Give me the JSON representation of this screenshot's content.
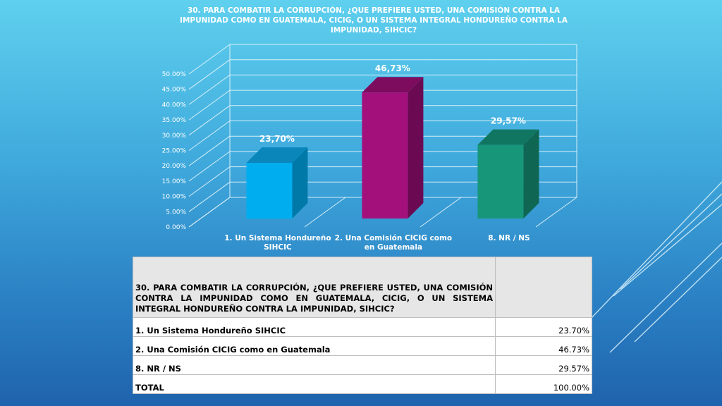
{
  "chart_data": {
    "type": "bar",
    "title": "30. PARA COMBATIR LA CORRUPCIÓN, ¿QUE PREFIERE USTED, UNA COMISIÓN CONTRA LA IMPUNIDAD COMO EN GUATEMALA, CICIG, O UN SISTEMA INTEGRAL HONDUREÑO CONTRA LA IMPUNIDAD, SIHCIC?",
    "categories": [
      "1. Un Sistema Hondureño SIHCIC",
      "2. Una Comisión CICIG como en Guatemala",
      "8. NR / NS"
    ],
    "category_lines": [
      [
        "1. Un Sistema Hondureño",
        "SIHCIC"
      ],
      [
        "2. Una Comisión CICIG como",
        "en Guatemala"
      ],
      [
        "8. NR / NS"
      ]
    ],
    "values": [
      23.7,
      46.73,
      29.57
    ],
    "data_labels": [
      "23,70%",
      "46,73%",
      "29,57%"
    ],
    "ylim": [
      0,
      50
    ],
    "yticks": [
      0,
      5,
      10,
      15,
      20,
      25,
      30,
      35,
      40,
      45,
      50
    ],
    "ytick_labels": [
      "0.00%",
      "5.00%",
      "10.00%",
      "15.00%",
      "20.00%",
      "25.00%",
      "30.00%",
      "35.00%",
      "40.00%",
      "45.00%",
      "50.00%"
    ],
    "grid": true,
    "colors": [
      {
        "front": "#00adef",
        "side": "#0079a8",
        "top": "#0a86bb"
      },
      {
        "front": "#a3107c",
        "side": "#6b0a52",
        "top": "#7d0c5f"
      },
      {
        "front": "#17967a",
        "side": "#0f6653",
        "top": "#117661"
      }
    ]
  },
  "table": {
    "question": "30. PARA COMBATIR LA CORRUPCIÓN, ¿QUE PREFIERE USTED, UNA COMISIÓN CONTRA LA IMPUNIDAD COMO EN GUATEMALA, CICIG, O UN SISTEMA INTEGRAL HONDUREÑO CONTRA LA IMPUNIDAD, SIHCIC?",
    "rows": [
      {
        "label": "1. Un Sistema Hondureño SIHCIC",
        "value": "23.70%"
      },
      {
        "label": "2. Una Comisión CICIG como en Guatemala",
        "value": "46.73%"
      },
      {
        "label": "8. NR / NS",
        "value": "29.57%"
      },
      {
        "label": "TOTAL",
        "value": "100.00%"
      }
    ]
  }
}
